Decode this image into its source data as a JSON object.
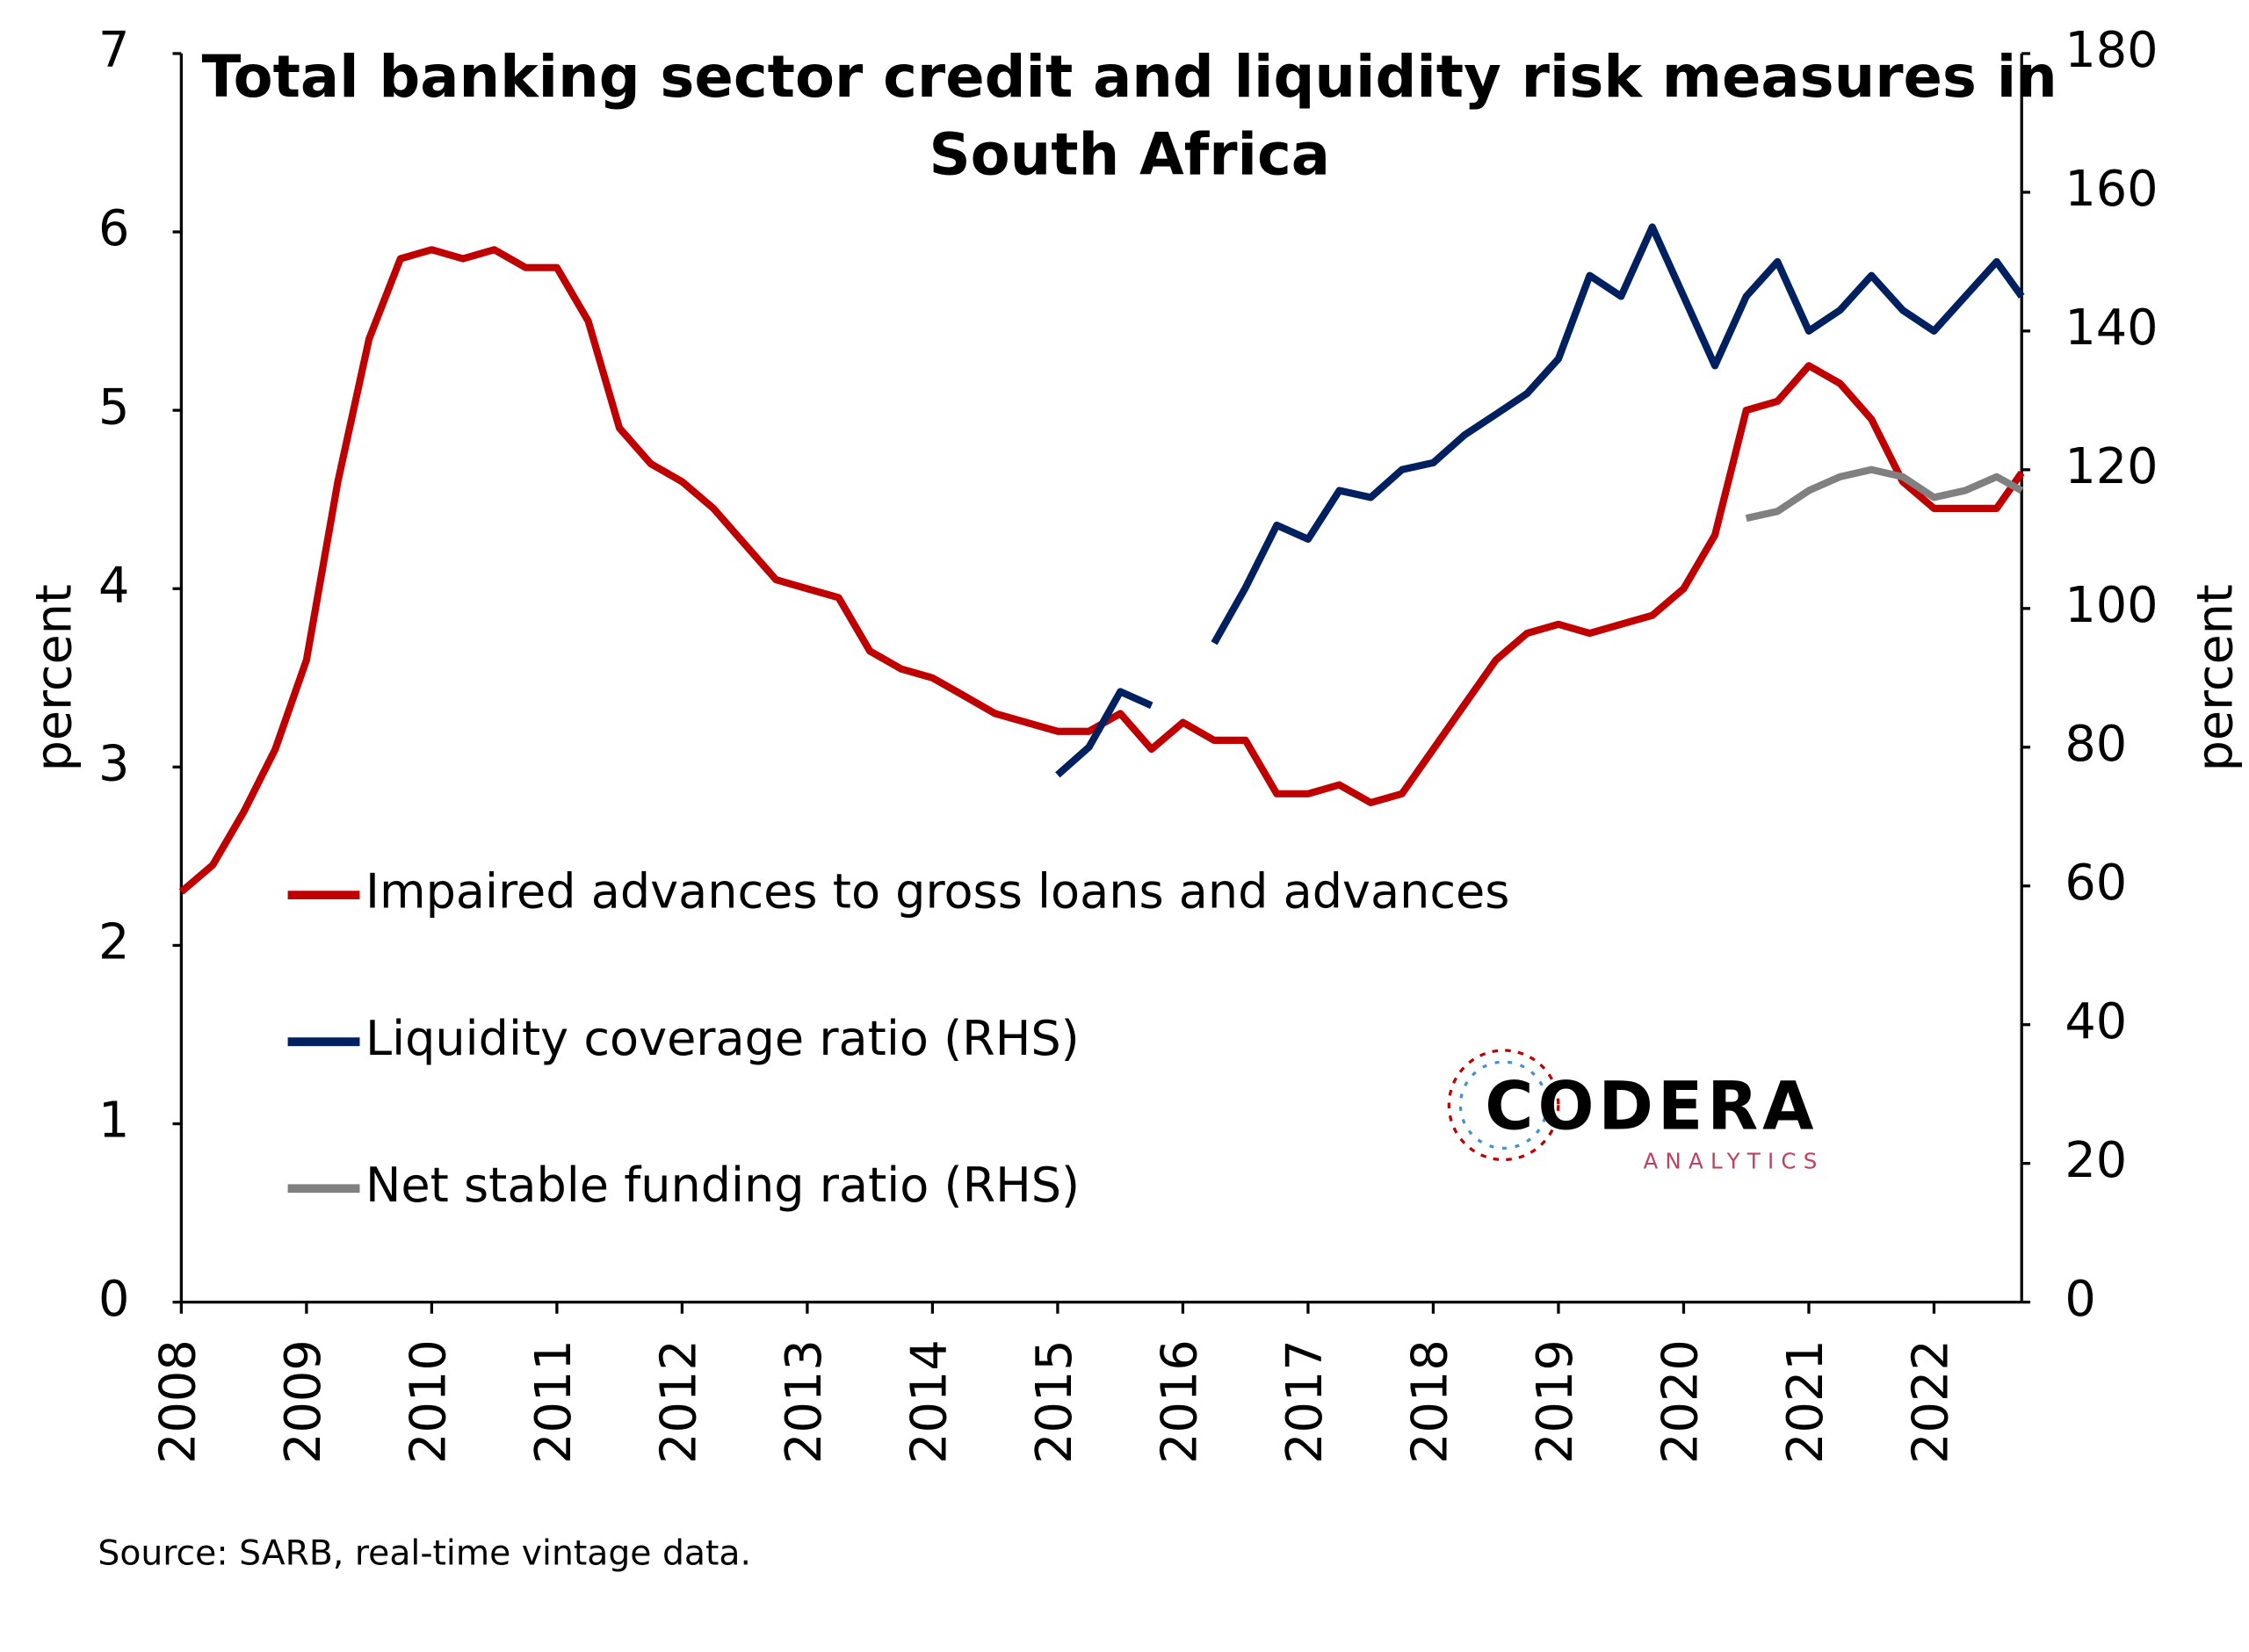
{
  "chart_data": {
    "type": "line",
    "title": [
      "Total banking sector credit and liquidity risk measures in",
      "South Africa"
    ],
    "y_label": "percent",
    "y2_label": "percent",
    "source": "Source: SARB, real-time vintage data.",
    "logo": {
      "name": "CODERA",
      "sub": "ANALYTICS"
    },
    "x": [
      2008,
      2008.25,
      2008.5,
      2008.75,
      2009,
      2009.25,
      2009.5,
      2009.75,
      2010,
      2010.25,
      2010.5,
      2010.75,
      2011,
      2011.25,
      2011.5,
      2011.75,
      2012,
      2012.25,
      2012.5,
      2012.75,
      2013,
      2013.25,
      2013.5,
      2013.75,
      2014,
      2014.25,
      2014.5,
      2014.75,
      2015,
      2015.25,
      2015.5,
      2015.75,
      2016,
      2016.25,
      2016.5,
      2016.75,
      2017,
      2017.25,
      2017.5,
      2017.75,
      2018,
      2018.25,
      2018.5,
      2018.75,
      2019,
      2019.25,
      2019.5,
      2019.75,
      2020,
      2020.25,
      2020.5,
      2020.75,
      2021,
      2021.25,
      2021.5,
      2021.75,
      2022,
      2022.25,
      2022.5,
      2022.7
    ],
    "xlim": [
      2008,
      2022.7
    ],
    "xticks": [
      2008,
      2009,
      2010,
      2011,
      2012,
      2013,
      2014,
      2015,
      2016,
      2017,
      2018,
      2019,
      2020,
      2021,
      2022
    ],
    "ylim": [
      0,
      7
    ],
    "yticks": [
      0,
      1,
      2,
      3,
      4,
      5,
      6,
      7
    ],
    "y2lim": [
      0,
      180
    ],
    "y2ticks": [
      0,
      20,
      40,
      60,
      80,
      100,
      120,
      140,
      160,
      180
    ],
    "series": [
      {
        "name": "Impaired advances to gross loans and advances",
        "color": "#c00000",
        "values": [
          2.3,
          2.45,
          2.75,
          3.1,
          3.6,
          4.6,
          5.4,
          5.85,
          5.9,
          5.85,
          5.9,
          5.8,
          5.8,
          5.5,
          4.9,
          4.7,
          4.6,
          4.45,
          4.25,
          4.05,
          4.0,
          3.95,
          3.65,
          3.55,
          3.5,
          3.4,
          3.3,
          3.25,
          3.2,
          3.2,
          3.3,
          3.1,
          3.25,
          3.15,
          3.15,
          2.85,
          2.85,
          2.9,
          2.8,
          2.85,
          3.1,
          3.35,
          3.6,
          3.75,
          3.8,
          3.75,
          3.8,
          3.85,
          4.0,
          4.3,
          5.0,
          5.05,
          5.25,
          5.15,
          4.95,
          4.6,
          4.45,
          4.45,
          4.45,
          4.65
        ]
      },
      {
        "name": "Liquidity coverage ratio (RHS)",
        "color": "#002060",
        "axis": "y2",
        "values": [
          null,
          null,
          null,
          null,
          null,
          null,
          null,
          null,
          null,
          null,
          null,
          null,
          null,
          null,
          null,
          null,
          null,
          null,
          null,
          null,
          null,
          null,
          null,
          null,
          null,
          null,
          null,
          null,
          76,
          80,
          88,
          86,
          null,
          95,
          103,
          112,
          110,
          117,
          116,
          120,
          121,
          125,
          128,
          131,
          136,
          148,
          145,
          155,
          145,
          135,
          145,
          150,
          140,
          143,
          148,
          143,
          140,
          145,
          150,
          145
        ]
      },
      {
        "name": "Net stable funding ratio (RHS)",
        "color": "#808080",
        "axis": "y2",
        "values": [
          null,
          null,
          null,
          null,
          null,
          null,
          null,
          null,
          null,
          null,
          null,
          null,
          null,
          null,
          null,
          null,
          null,
          null,
          null,
          null,
          null,
          null,
          null,
          null,
          null,
          null,
          null,
          null,
          null,
          null,
          null,
          null,
          null,
          null,
          null,
          null,
          null,
          null,
          null,
          null,
          null,
          null,
          null,
          null,
          null,
          null,
          null,
          null,
          null,
          null,
          113,
          114,
          117,
          119,
          120,
          119,
          116,
          117,
          119,
          117
        ]
      }
    ]
  }
}
